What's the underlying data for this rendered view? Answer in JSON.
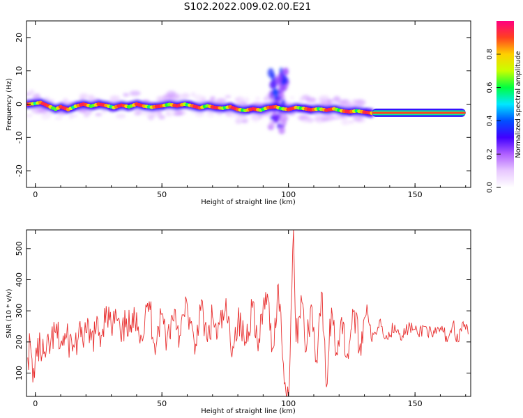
{
  "title": "S102.2022.009.02.00.E21",
  "colors": {
    "snr_line": "#e83030",
    "colormap": [
      "#ffffff",
      "#e8c8ff",
      "#b060ff",
      "#4000ff",
      "#0050ff",
      "#00e8ff",
      "#00ff40",
      "#c8ff00",
      "#ffd000",
      "#ff4020",
      "#ff0080"
    ]
  },
  "chart_data": [
    {
      "type": "heatmap",
      "title": "",
      "xlabel": "Height of straight line (km)",
      "ylabel": "Frequency (Hz)",
      "xlim": [
        -3.5,
        172
      ],
      "ylim": [
        -25,
        25
      ],
      "xticks": [
        0,
        50,
        100,
        150
      ],
      "yticks": [
        -20,
        -10,
        0,
        10,
        20
      ],
      "colorbar": {
        "label": "Normalized spectral amplitude",
        "range": [
          0,
          1
        ],
        "ticks": [
          "0.0",
          "0.2",
          "0.4",
          "0.6",
          "0.8"
        ]
      },
      "ridge": {
        "x": [
          -3,
          0,
          2,
          5,
          8,
          10,
          13,
          16,
          19,
          22,
          25,
          28,
          31,
          34,
          37,
          40,
          43,
          46,
          50,
          53,
          56,
          59,
          62,
          65,
          68,
          71,
          74,
          77,
          80,
          83,
          86,
          89,
          92,
          95,
          97,
          100,
          103,
          106,
          109,
          112,
          115,
          118,
          121,
          124,
          127,
          130,
          133,
          140,
          150,
          160,
          170
        ],
        "y": [
          0.0,
          0.2,
          0.5,
          -0.5,
          -1.5,
          -0.8,
          -1.6,
          -0.6,
          0.0,
          -0.6,
          0.0,
          -0.4,
          -1.0,
          -0.3,
          -0.8,
          0.0,
          -0.6,
          -0.9,
          -0.5,
          -0.1,
          -0.5,
          0.0,
          -0.5,
          -1.1,
          -0.5,
          -1.0,
          -1.2,
          -0.8,
          -1.6,
          -1.9,
          -1.4,
          -1.8,
          -1.0,
          -0.8,
          -1.3,
          -1.6,
          -1.0,
          -1.3,
          -1.7,
          -1.4,
          -1.8,
          -1.4,
          -2.0,
          -2.3,
          -2.0,
          -2.4,
          -2.7,
          -2.6,
          -2.6,
          -2.5,
          -2.6
        ]
      }
    },
    {
      "type": "line",
      "title": "",
      "xlabel": "Height of straight line (km)",
      "ylabel": "SNR (10 * v/v)",
      "xlim": [
        -3.5,
        172
      ],
      "ylim": [
        25,
        560
      ],
      "xticks": [
        0,
        50,
        100,
        150
      ],
      "yticks": [
        100,
        200,
        300,
        400,
        500
      ],
      "series": [
        {
          "values": [
            {
              "x": -3,
              "y": 150
            },
            {
              "x": -2,
              "y": 195
            },
            {
              "x": -1,
              "y": 70
            },
            {
              "x": 0,
              "y": 160
            },
            {
              "x": 2,
              "y": 180
            },
            {
              "x": 4,
              "y": 150
            },
            {
              "x": 6,
              "y": 195
            },
            {
              "x": 8,
              "y": 230
            },
            {
              "x": 10,
              "y": 195
            },
            {
              "x": 12,
              "y": 210
            },
            {
              "x": 15,
              "y": 190
            },
            {
              "x": 18,
              "y": 215
            },
            {
              "x": 20,
              "y": 230
            },
            {
              "x": 22,
              "y": 205
            },
            {
              "x": 24,
              "y": 240
            },
            {
              "x": 26,
              "y": 220
            },
            {
              "x": 28,
              "y": 315
            },
            {
              "x": 30,
              "y": 240
            },
            {
              "x": 32,
              "y": 285
            },
            {
              "x": 34,
              "y": 200
            },
            {
              "x": 36,
              "y": 275
            },
            {
              "x": 38,
              "y": 230
            },
            {
              "x": 40,
              "y": 295
            },
            {
              "x": 42,
              "y": 215
            },
            {
              "x": 45,
              "y": 330
            },
            {
              "x": 47,
              "y": 195
            },
            {
              "x": 50,
              "y": 290
            },
            {
              "x": 52,
              "y": 210
            },
            {
              "x": 55,
              "y": 305
            },
            {
              "x": 57,
              "y": 220
            },
            {
              "x": 60,
              "y": 320
            },
            {
              "x": 63,
              "y": 160
            },
            {
              "x": 65,
              "y": 320
            },
            {
              "x": 68,
              "y": 200
            },
            {
              "x": 70,
              "y": 280
            },
            {
              "x": 72,
              "y": 220
            },
            {
              "x": 75,
              "y": 300
            },
            {
              "x": 78,
              "y": 185
            },
            {
              "x": 80,
              "y": 270
            },
            {
              "x": 83,
              "y": 200
            },
            {
              "x": 86,
              "y": 330
            },
            {
              "x": 88,
              "y": 170
            },
            {
              "x": 91,
              "y": 360
            },
            {
              "x": 94,
              "y": 180
            },
            {
              "x": 96,
              "y": 385
            },
            {
              "x": 98,
              "y": 130
            },
            {
              "x": 99,
              "y": 40
            },
            {
              "x": 100,
              "y": 25
            },
            {
              "x": 101,
              "y": 300
            },
            {
              "x": 102,
              "y": 560
            },
            {
              "x": 103,
              "y": 200
            },
            {
              "x": 105,
              "y": 350
            },
            {
              "x": 107,
              "y": 170
            },
            {
              "x": 109,
              "y": 320
            },
            {
              "x": 111,
              "y": 140
            },
            {
              "x": 113,
              "y": 360
            },
            {
              "x": 115,
              "y": 55
            },
            {
              "x": 117,
              "y": 310
            },
            {
              "x": 119,
              "y": 165
            },
            {
              "x": 121,
              "y": 280
            },
            {
              "x": 123,
              "y": 150
            },
            {
              "x": 126,
              "y": 300
            },
            {
              "x": 128,
              "y": 175
            },
            {
              "x": 131,
              "y": 320
            },
            {
              "x": 133,
              "y": 200
            },
            {
              "x": 136,
              "y": 270
            },
            {
              "x": 139,
              "y": 210
            },
            {
              "x": 142,
              "y": 255
            },
            {
              "x": 145,
              "y": 220
            },
            {
              "x": 148,
              "y": 250
            },
            {
              "x": 151,
              "y": 225
            },
            {
              "x": 154,
              "y": 250
            },
            {
              "x": 157,
              "y": 215
            },
            {
              "x": 160,
              "y": 245
            },
            {
              "x": 163,
              "y": 210
            },
            {
              "x": 165,
              "y": 260
            },
            {
              "x": 167,
              "y": 200
            },
            {
              "x": 169,
              "y": 265
            },
            {
              "x": 171,
              "y": 225
            }
          ]
        }
      ]
    }
  ]
}
